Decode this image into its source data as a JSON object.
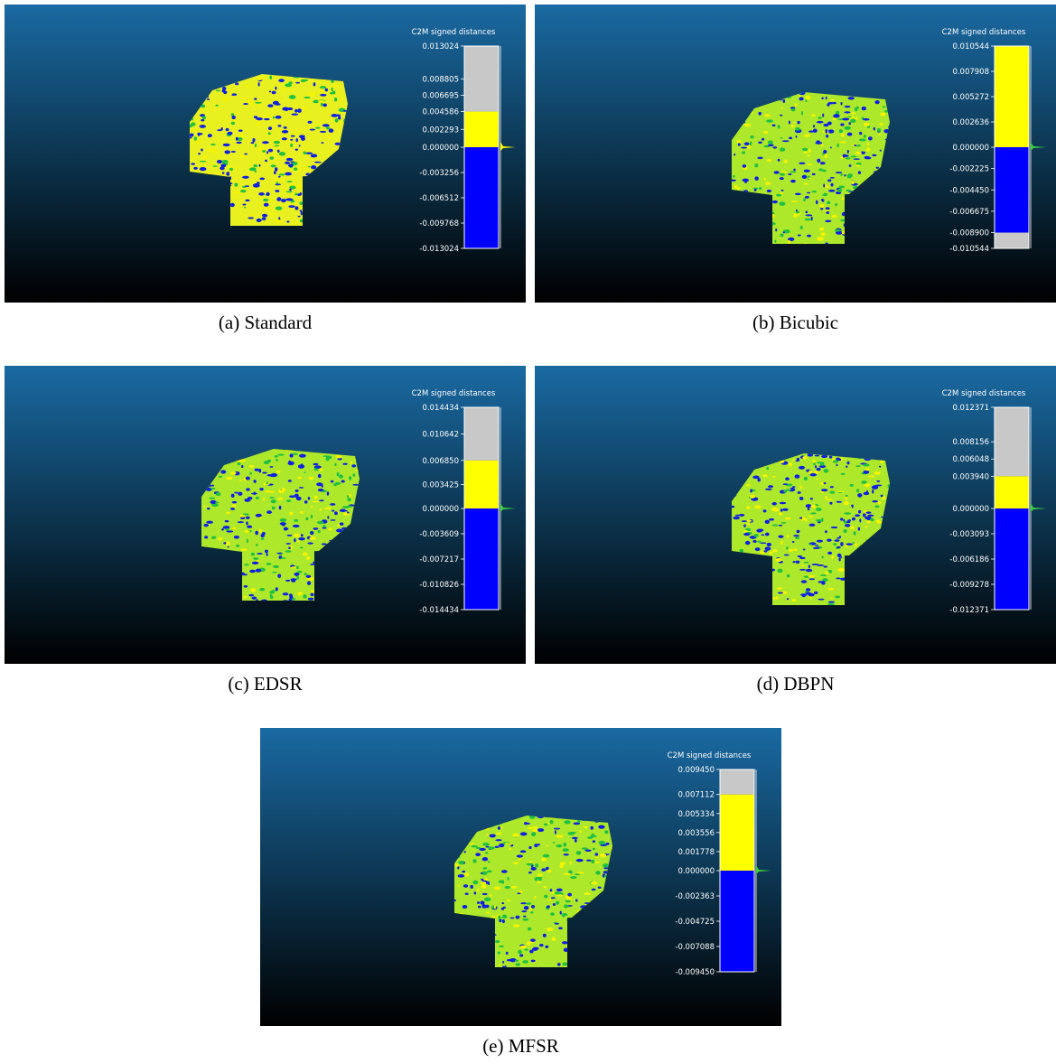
{
  "panels": [
    {
      "caption": "(a) Standard",
      "scale_title": "C2M signed distances",
      "ticks": [
        "0.013024",
        "0.008805",
        "0.006695",
        "0.004586",
        "0.002293",
        "0.000000",
        "-0.003256",
        "-0.006512",
        "-0.009768",
        "-0.013024"
      ]
    },
    {
      "caption": "(b) Bicubic",
      "scale_title": "C2M signed distances",
      "ticks": [
        "0.010544",
        "0.007908",
        "0.005272",
        "0.002636",
        "0.000000",
        "-0.002225",
        "-0.004450",
        "-0.006675",
        "-0.008900",
        "-0.010544"
      ]
    },
    {
      "caption": "(c) EDSR",
      "scale_title": "C2M signed distances",
      "ticks": [
        "0.014434",
        "0.010642",
        "0.006850",
        "0.003425",
        "0.000000",
        "-0.003609",
        "-0.007217",
        "-0.010826",
        "-0.014434"
      ]
    },
    {
      "caption": "(d) DBPN",
      "scale_title": "C2M signed distances",
      "ticks": [
        "0.012371",
        "0.008156",
        "0.006048",
        "0.003940",
        "0.000000",
        "-0.003093",
        "-0.006186",
        "-0.009278",
        "-0.012371"
      ]
    },
    {
      "caption": "(e) MFSR",
      "scale_title": "C2M signed distances",
      "ticks": [
        "0.009450",
        "0.007112",
        "0.005334",
        "0.003556",
        "0.001778",
        "0.000000",
        "-0.002363",
        "-0.004725",
        "-0.007088",
        "-0.009450"
      ]
    }
  ]
}
